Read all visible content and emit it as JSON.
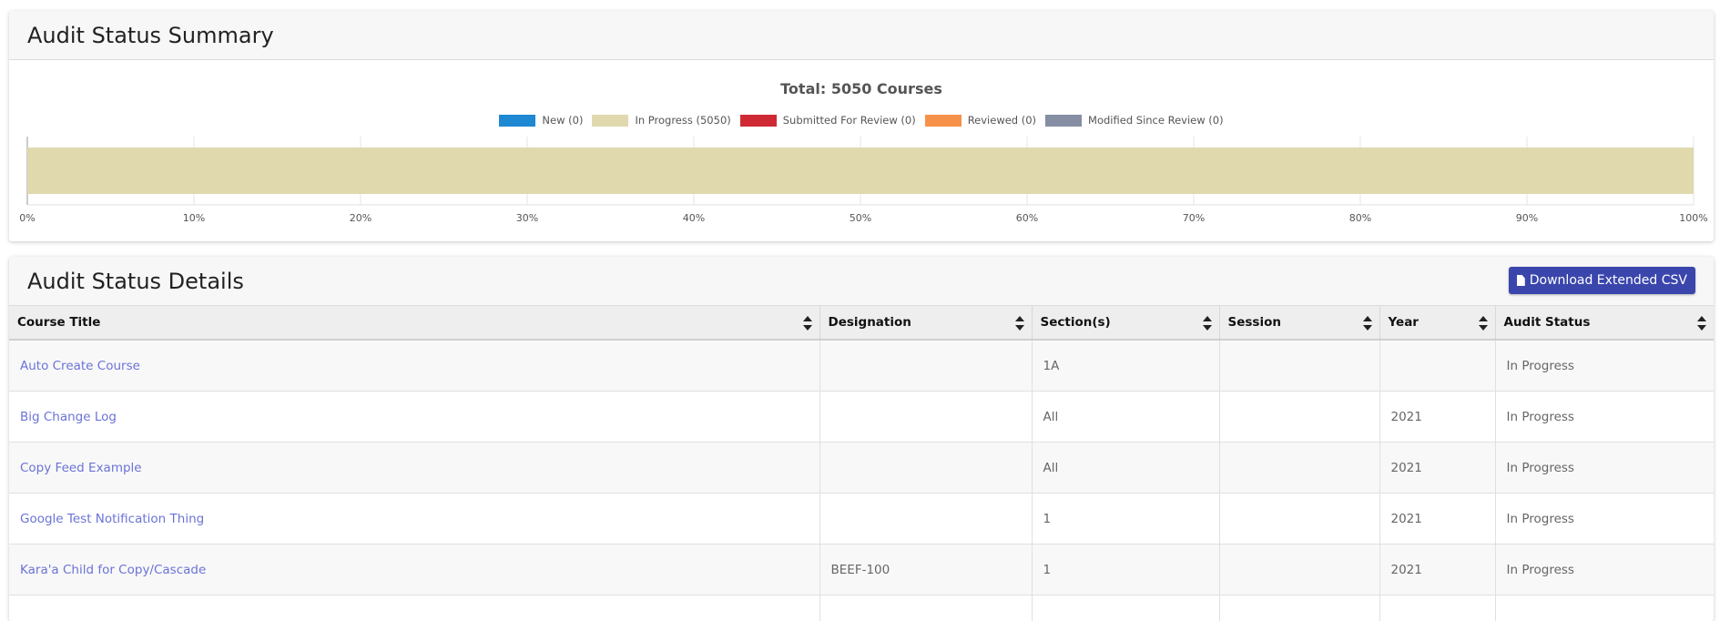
{
  "summary": {
    "title": "Audit Status Summary"
  },
  "chart_data": {
    "type": "bar",
    "orientation": "horizontal-stacked-100",
    "title": "Total: 5050 Courses",
    "legend": [
      {
        "label": "New (0)",
        "color": "#1e88d2"
      },
      {
        "label": "In Progress (5050)",
        "color": "#e0d9ae"
      },
      {
        "label": "Submitted For Review (0)",
        "color": "#cf2a33"
      },
      {
        "label": "Reviewed (0)",
        "color": "#f69149"
      },
      {
        "label": "Modified Since Review (0)",
        "color": "#858ea3"
      }
    ],
    "series": [
      {
        "name": "New (0)",
        "values": [
          0
        ]
      },
      {
        "name": "In Progress (5050)",
        "values": [
          100
        ]
      },
      {
        "name": "Submitted For Review (0)",
        "values": [
          0
        ]
      },
      {
        "name": "Reviewed (0)",
        "values": [
          0
        ]
      },
      {
        "name": "Modified Since Review (0)",
        "values": [
          0
        ]
      }
    ],
    "xlim": [
      0,
      100
    ],
    "xticks": [
      "0%",
      "10%",
      "20%",
      "30%",
      "40%",
      "50%",
      "60%",
      "70%",
      "80%",
      "90%",
      "100%"
    ],
    "grid": true
  },
  "details": {
    "title": "Audit Status Details",
    "download_label": "Download Extended CSV",
    "columns": [
      "Course Title",
      "Designation",
      "Section(s)",
      "Session",
      "Year",
      "Audit Status"
    ],
    "rows": [
      {
        "course": "Auto Create Course",
        "designation": "",
        "sections": "1A",
        "session": "",
        "year": "",
        "status": "In Progress"
      },
      {
        "course": "Big Change Log",
        "designation": "",
        "sections": "All",
        "session": "",
        "year": "2021",
        "status": "In Progress"
      },
      {
        "course": "Copy Feed Example",
        "designation": "",
        "sections": "All",
        "session": "",
        "year": "2021",
        "status": "In Progress"
      },
      {
        "course": "Google Test Notification Thing",
        "designation": "",
        "sections": "1",
        "session": "",
        "year": "2021",
        "status": "In Progress"
      },
      {
        "course": "Kara'a Child for Copy/Cascade",
        "designation": "BEEF-100",
        "sections": "1",
        "session": "",
        "year": "2021",
        "status": "In Progress"
      },
      {
        "course": "",
        "designation": "",
        "sections": "",
        "session": "",
        "year": "",
        "status": ""
      }
    ]
  }
}
